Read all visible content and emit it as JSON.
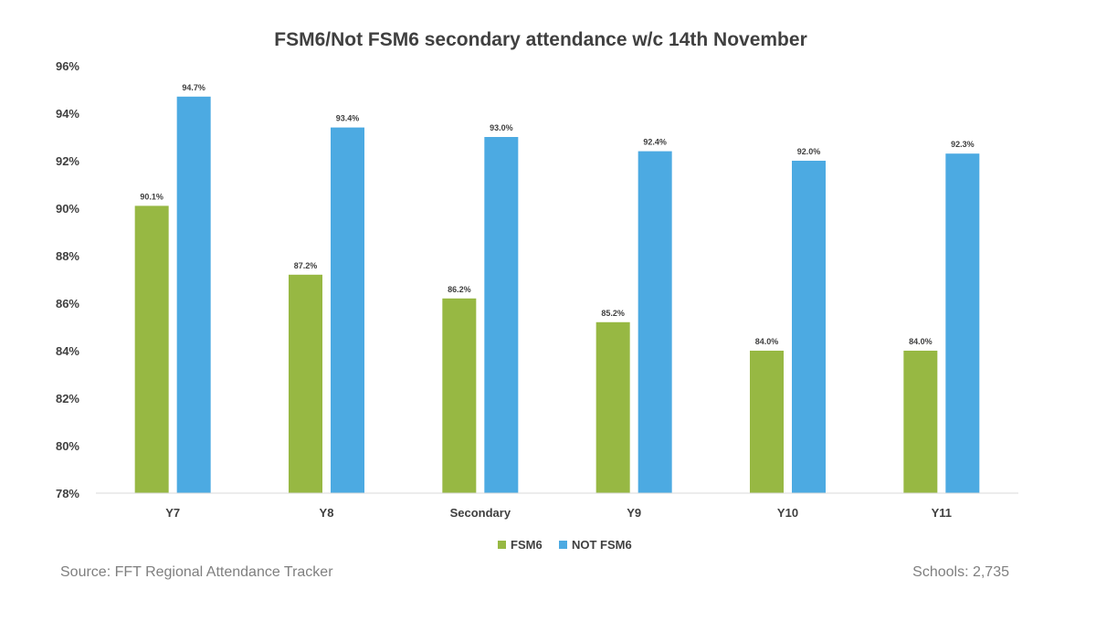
{
  "chart_data": {
    "type": "bar",
    "title": "FSM6/Not FSM6 secondary attendance w/c 14th November",
    "categories": [
      "Y7",
      "Y8",
      "Secondary",
      "Y9",
      "Y10",
      "Y11"
    ],
    "series": [
      {
        "name": "FSM6",
        "color": "#97b843",
        "values": [
          90.1,
          87.2,
          86.2,
          85.2,
          84.0,
          84.0
        ],
        "labels": [
          "90.1%",
          "87.2%",
          "86.2%",
          "85.2%",
          "84.0%",
          "84.0%"
        ]
      },
      {
        "name": "NOT FSM6",
        "color": "#4caae2",
        "values": [
          94.7,
          93.4,
          93.0,
          92.4,
          92.0,
          92.3
        ],
        "labels": [
          "94.7%",
          "93.4%",
          "93.0%",
          "92.4%",
          "92.0%",
          "92.3%"
        ]
      }
    ],
    "ylim": [
      78,
      96
    ],
    "yticks": [
      78,
      80,
      82,
      84,
      86,
      88,
      90,
      92,
      94,
      96
    ],
    "ytick_labels": [
      "78%",
      "80%",
      "82%",
      "84%",
      "86%",
      "88%",
      "90%",
      "92%",
      "94%",
      "96%"
    ],
    "xlabel": "",
    "ylabel": "",
    "grid": false,
    "legend_position": "bottom"
  },
  "footer": {
    "source": "Source: FFT Regional Attendance Tracker",
    "schools": "Schools: 2,735"
  }
}
